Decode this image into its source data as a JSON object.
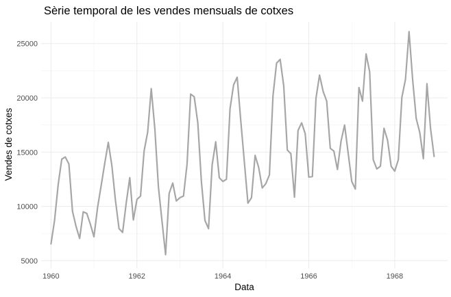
{
  "chart_data": {
    "type": "line",
    "title": "Sèrie temporal de les vendes mensuals de cotxes",
    "xlabel": "Data",
    "ylabel": "Vendes de cotxes",
    "x_tick_labels": [
      "1960",
      "1962",
      "1964",
      "1966",
      "1968"
    ],
    "y_tick_labels": [
      "5000",
      "10000",
      "15000",
      "20000",
      "25000"
    ],
    "xlim": [
      1959.77,
      1969.23
    ],
    "ylim": [
      4300,
      27000
    ],
    "grid": true,
    "line_color": "#a6a6a6",
    "series": [
      {
        "x_start": 1960,
        "x_step_months": 1,
        "values": [
          6550,
          8730,
          12000,
          14350,
          14550,
          13900,
          9550,
          8150,
          7050,
          9500,
          9350,
          8350,
          7200,
          9900,
          11900,
          13950,
          15900,
          13750,
          10550,
          7950,
          7600,
          10300,
          12650,
          8750,
          10650,
          10950,
          15100,
          16850,
          20850,
          17150,
          11800,
          8650,
          5550,
          11200,
          12150,
          10500,
          10800,
          10950,
          13900,
          20350,
          20100,
          17700,
          12300,
          8700,
          7950,
          13800,
          15950,
          12650,
          12300,
          12500,
          19000,
          21200,
          21900,
          17900,
          14100,
          10300,
          10800,
          14700,
          13600,
          11700,
          12100,
          12900,
          20200,
          23200,
          23550,
          21100,
          15200,
          14850,
          10850,
          17000,
          17700,
          16700,
          12700,
          12750,
          19950,
          22100,
          20600,
          19700,
          15350,
          15100,
          13400,
          16000,
          17500,
          14900,
          12300,
          11600,
          20950,
          19700,
          24050,
          22400,
          14300,
          13450,
          13700,
          17200,
          16100,
          13700,
          13250,
          14300,
          20050,
          21700,
          26100,
          21700,
          18100,
          16800,
          14400,
          21300,
          17200,
          14600
        ]
      }
    ]
  }
}
